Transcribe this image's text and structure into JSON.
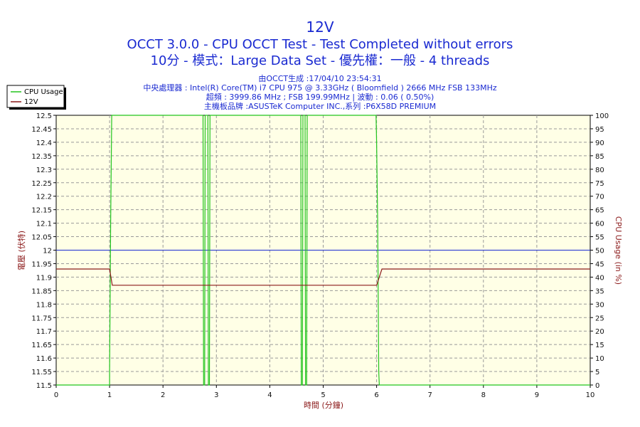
{
  "chart_data": {
    "type": "line",
    "title": "12V",
    "subtitle_lines": [
      "OCCT 3.0.0 - CPU OCCT Test - Test Completed without errors",
      "10分 - 模式：Large Data Set - 優先權：一般 - 4 threads"
    ],
    "info_lines": [
      "由OCCT生成 :17/04/10 23:54:31",
      "中央處理器 : Intel(R) Core(TM) i7 CPU 975 @ 3.33GHz ( Bloomfield ) 2666 MHz FSB 133MHz",
      "超頻 : 3999.86 MHz ; FSB 199.99MHz | 波動 : 0.06 ( 0.50%)",
      "主機板品牌 :ASUSTeK Computer INC.,系列 :P6X58D PREMIUM"
    ],
    "xlabel": "時間 (分鐘)",
    "ylabel_left": "電壓 (伏特)",
    "ylabel_right": "CPU Usage (in %)",
    "xlim": [
      0,
      10
    ],
    "ylim_left": [
      11.5,
      12.5
    ],
    "ylim_right": [
      0,
      100
    ],
    "x_ticks": [
      "0",
      "1",
      "2",
      "3",
      "4",
      "5",
      "6",
      "7",
      "8",
      "9",
      "10"
    ],
    "y_left_ticks": [
      "12.5",
      "12.45",
      "12.4",
      "12.35",
      "12.3",
      "12.25",
      "12.2",
      "12.15",
      "12.1",
      "12.05",
      "12",
      "11.95",
      "11.9",
      "11.85",
      "11.8",
      "11.75",
      "11.7",
      "11.65",
      "11.6",
      "11.55",
      "11.5"
    ],
    "y_right_ticks": [
      "100",
      "95",
      "90",
      "85",
      "80",
      "75",
      "70",
      "65",
      "60",
      "55",
      "50",
      "45",
      "40",
      "35",
      "30",
      "25",
      "20",
      "15",
      "10",
      "5",
      "0"
    ],
    "grid": true,
    "legend_position": "top-left",
    "series": [
      {
        "name": "CPU Usage",
        "axis": "right",
        "color": "#22c41e",
        "points": [
          [
            0,
            0
          ],
          [
            1.0,
            0
          ],
          [
            1.0,
            5
          ],
          [
            1.02,
            60
          ],
          [
            1.04,
            100
          ],
          [
            1.05,
            100
          ],
          [
            2.75,
            100
          ],
          [
            2.76,
            0
          ],
          [
            2.78,
            0
          ],
          [
            2.79,
            100
          ],
          [
            2.84,
            100
          ],
          [
            2.85,
            0
          ],
          [
            2.87,
            0
          ],
          [
            2.88,
            100
          ],
          [
            4.58,
            100
          ],
          [
            4.59,
            0
          ],
          [
            4.61,
            0
          ],
          [
            4.62,
            100
          ],
          [
            4.66,
            100
          ],
          [
            4.67,
            0
          ],
          [
            4.69,
            0
          ],
          [
            4.7,
            100
          ],
          [
            5.99,
            100
          ],
          [
            6.0,
            90
          ],
          [
            6.02,
            60
          ],
          [
            6.04,
            5
          ],
          [
            6.05,
            0
          ],
          [
            10,
            0
          ]
        ]
      },
      {
        "name": "12V",
        "axis": "left",
        "color": "#8b1a1a",
        "points": [
          [
            0,
            11.93
          ],
          [
            1.0,
            11.93
          ],
          [
            1.05,
            11.87
          ],
          [
            6.0,
            11.87
          ],
          [
            6.1,
            11.93
          ],
          [
            10,
            11.93
          ]
        ]
      }
    ],
    "reference_line": {
      "axis": "right",
      "value": 50,
      "color": "#1a2ad1"
    }
  }
}
